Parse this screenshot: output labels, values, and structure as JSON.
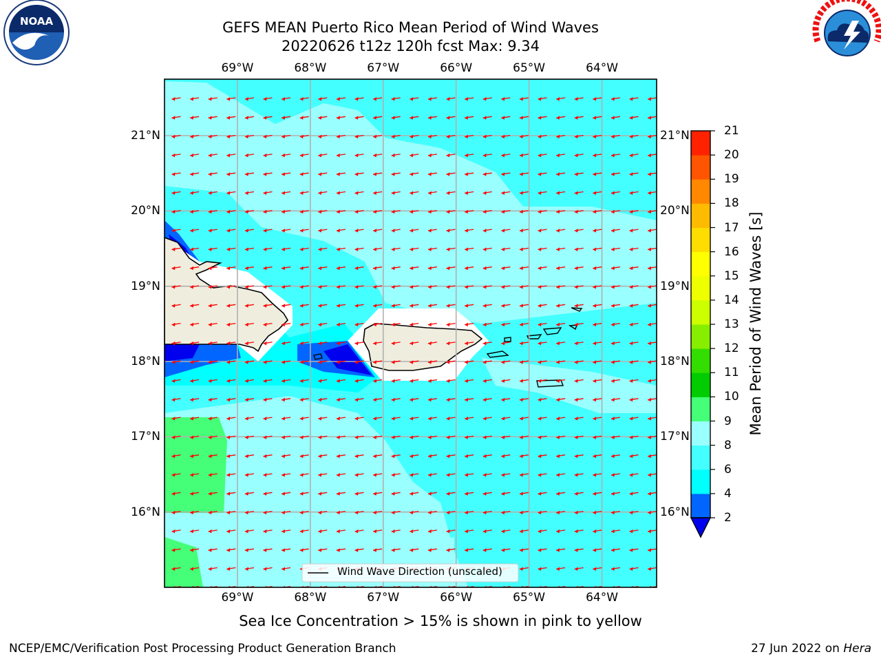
{
  "title": {
    "line1": "GEFS MEAN Puerto Rico Mean Period of Wind Waves",
    "line2": "20220626 t12z 120h fcst   Max: 9.34"
  },
  "logos": {
    "left": "noaa-logo",
    "right": "national-weather-service-logo"
  },
  "map": {
    "lon_ticks": [
      "69°W",
      "68°W",
      "67°W",
      "66°W",
      "65°W",
      "64°W"
    ],
    "lat_ticks": [
      "21°N",
      "20°N",
      "19°N",
      "18°N",
      "17°N",
      "16°N"
    ],
    "lon_range": [
      -70.0,
      -63.25
    ],
    "lat_range": [
      15.0,
      21.75
    ],
    "legend_label": "Wind Wave Direction (unscaled)",
    "arrow_color": "#ff0000",
    "land_color": "#efedde"
  },
  "colorbar": {
    "label": "Mean Period of Wind Waves [s]",
    "ticks": [
      "2",
      "4",
      "6",
      "8",
      "9",
      "10",
      "11",
      "12",
      "13",
      "14",
      "15",
      "16",
      "17",
      "18",
      "19",
      "20",
      "21"
    ],
    "colors": [
      "#0066ff",
      "#00ffff",
      "#44ffff",
      "#99ffff",
      "#44ff77",
      "#00cc00",
      "#33dd00",
      "#88ee00",
      "#ccff00",
      "#eeff00",
      "#ffff00",
      "#ffdd00",
      "#ffbb00",
      "#ff8800",
      "#ff5500",
      "#ff2200"
    ],
    "under_color": "#0000ee"
  },
  "caption": "Sea Ice Concentration > 15% is shown in pink to yellow",
  "footer": {
    "left": "NCEP/EMC/Verification Post Processing Product Generation Branch",
    "date": "27 Jun 2022 on ",
    "machine": "Hera"
  }
}
